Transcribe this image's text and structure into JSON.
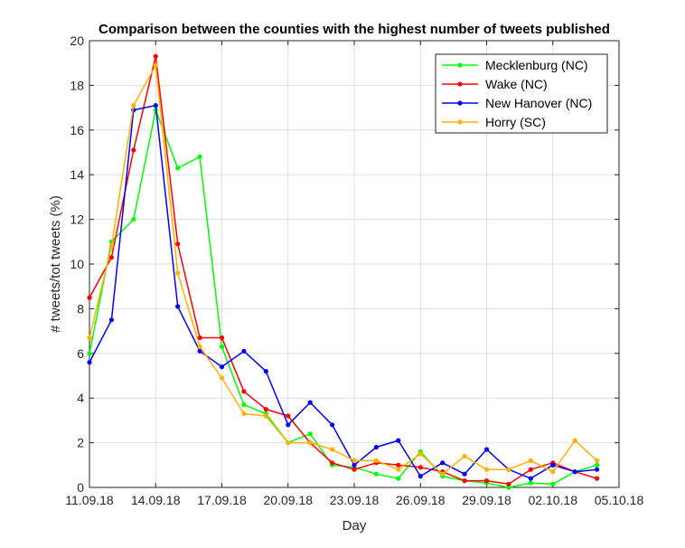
{
  "chart_data": {
    "type": "line",
    "title": "Comparison between the counties with the highest number of tweets published",
    "xlabel": "Day",
    "ylabel": "# tweets/tot tweets (%)",
    "ylim": [
      0,
      20
    ],
    "yticks": [
      0,
      2,
      4,
      6,
      8,
      10,
      12,
      14,
      16,
      18,
      20
    ],
    "xlim": [
      "11.09.18",
      "05.10.18"
    ],
    "xticks": [
      "11.09.18",
      "14.09.18",
      "17.09.18",
      "20.09.18",
      "23.09.18",
      "26.09.18",
      "29.09.18",
      "02.10.18",
      "05.10.18"
    ],
    "x": [
      "11.09.18",
      "12.09.18",
      "13.09.18",
      "14.09.18",
      "15.09.18",
      "16.09.18",
      "17.09.18",
      "18.09.18",
      "19.09.18",
      "20.09.18",
      "21.09.18",
      "22.09.18",
      "23.09.18",
      "24.09.18",
      "25.09.18",
      "26.09.18",
      "27.09.18",
      "28.09.18",
      "29.09.18",
      "30.09.18",
      "01.10.18",
      "02.10.18",
      "03.10.18",
      "04.10.18"
    ],
    "grid": true,
    "legend_position": "top-right",
    "series": [
      {
        "name": "Mecklenburg (NC)",
        "color": "#00ff00",
        "values": [
          6.0,
          11.0,
          12.0,
          16.9,
          14.3,
          14.8,
          6.3,
          3.7,
          3.3,
          2.0,
          2.4,
          1.0,
          0.9,
          0.6,
          0.4,
          1.6,
          0.5,
          0.3,
          0.2,
          0.0,
          0.2,
          0.15,
          0.7,
          1.0
        ]
      },
      {
        "name": "Wake (NC)",
        "color": "#ff0000",
        "values": [
          8.5,
          10.3,
          15.1,
          19.3,
          10.9,
          6.7,
          6.7,
          4.3,
          3.5,
          3.2,
          2.0,
          1.1,
          0.8,
          1.1,
          1.0,
          0.9,
          0.7,
          0.3,
          0.3,
          0.15,
          0.8,
          1.1,
          0.7,
          0.4
        ]
      },
      {
        "name": "New Hanover (NC)",
        "color": "#0000ff",
        "values": [
          5.6,
          7.5,
          16.9,
          17.1,
          8.1,
          6.1,
          5.4,
          6.1,
          5.2,
          2.8,
          3.8,
          2.8,
          1.0,
          1.8,
          2.1,
          0.5,
          1.1,
          0.6,
          1.7,
          0.8,
          0.4,
          1.0,
          0.7,
          0.8
        ]
      },
      {
        "name": "Horry (SC)",
        "color": "#ffb000",
        "values": [
          6.7,
          10.8,
          17.1,
          18.9,
          9.6,
          6.3,
          4.9,
          3.3,
          3.2,
          2.0,
          2.0,
          1.7,
          1.2,
          1.2,
          0.8,
          1.5,
          0.6,
          1.4,
          0.8,
          0.8,
          1.2,
          0.7,
          2.1,
          1.2
        ]
      }
    ]
  }
}
